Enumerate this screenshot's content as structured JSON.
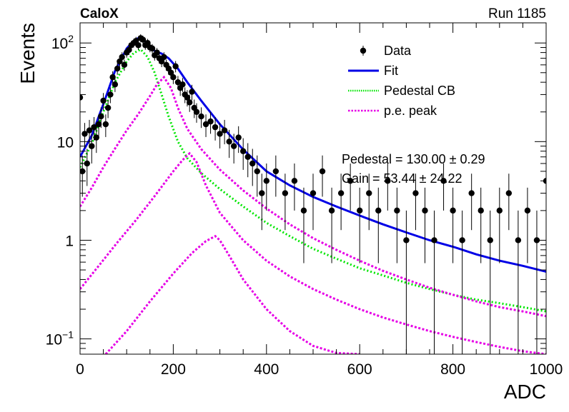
{
  "header": {
    "left_label": "CaloX",
    "right_label": "Run 1185"
  },
  "stats": {
    "pedestal": "Pedestal = 130.00 ± 0.29",
    "gain": "Gain = 53.44 ± 24.22"
  },
  "colors": {
    "data": "#000000",
    "fit": "#0000e6",
    "pedestal": "#00e600",
    "pe": "#e600e6"
  },
  "chart_data": {
    "type": "scatter",
    "xlabel": "ADC",
    "ylabel": "Events",
    "xlim": [
      0,
      1000
    ],
    "ylim": [
      0.07,
      160
    ],
    "yscale": "log",
    "x_ticks": [
      "0",
      "200",
      "400",
      "600",
      "800",
      "1000"
    ],
    "y_tick_labels": [
      {
        "value": 0.1,
        "base": "10",
        "exp": "−1"
      },
      {
        "value": 1,
        "base": "1",
        "exp": ""
      },
      {
        "value": 10,
        "base": "10",
        "exp": ""
      },
      {
        "value": 100,
        "base": "10",
        "exp": "2"
      }
    ],
    "legend": {
      "position": "top-right",
      "entries": [
        {
          "label": "Data",
          "style": "marker",
          "color": "#000000"
        },
        {
          "label": "Fit",
          "style": "line",
          "color": "#0000e6"
        },
        {
          "label": "Pedestal CB",
          "style": "dotted",
          "color": "#00e600"
        },
        {
          "label": "p.e. peak",
          "style": "dotted",
          "color": "#e600e6"
        }
      ]
    },
    "series": [
      {
        "name": "Data",
        "kind": "points",
        "color": "#000000",
        "x": [
          0,
          5,
          10,
          15,
          20,
          25,
          30,
          35,
          40,
          45,
          50,
          55,
          60,
          65,
          70,
          75,
          80,
          85,
          90,
          95,
          100,
          105,
          110,
          115,
          120,
          125,
          130,
          135,
          140,
          145,
          150,
          155,
          160,
          165,
          170,
          175,
          180,
          185,
          190,
          195,
          200,
          205,
          210,
          215,
          220,
          225,
          230,
          235,
          240,
          245,
          250,
          260,
          270,
          280,
          290,
          300,
          310,
          320,
          330,
          340,
          350,
          360,
          370,
          380,
          390,
          400,
          420,
          440,
          460,
          480,
          500,
          520,
          540,
          560,
          580,
          600,
          620,
          640,
          660,
          680,
          700,
          720,
          740,
          760,
          780,
          800,
          820,
          840,
          860,
          880,
          900,
          920,
          940,
          960,
          980,
          1000
        ],
        "y": [
          28,
          5,
          12,
          6,
          13,
          9,
          14,
          11,
          15,
          18,
          26,
          15,
          22,
          30,
          45,
          38,
          55,
          65,
          72,
          60,
          80,
          85,
          95,
          100,
          105,
          95,
          112,
          108,
          95,
          100,
          90,
          88,
          75,
          80,
          70,
          65,
          72,
          60,
          55,
          50,
          45,
          58,
          40,
          35,
          38,
          30,
          28,
          25,
          32,
          22,
          20,
          18,
          15,
          16,
          14,
          12,
          13,
          10,
          9,
          11,
          8,
          7,
          6,
          5,
          3,
          4,
          5,
          3,
          4,
          2,
          3,
          5,
          2,
          3,
          4,
          2,
          3,
          2,
          4,
          2,
          1,
          3,
          2,
          1,
          4,
          2,
          1,
          3,
          2,
          1,
          2,
          3,
          1,
          2,
          1,
          4
        ]
      },
      {
        "name": "Fit",
        "kind": "line",
        "color": "#0000e6",
        "x": [
          0,
          25,
          50,
          75,
          100,
          115,
          130,
          145,
          160,
          175,
          190,
          210,
          230,
          260,
          300,
          350,
          400,
          450,
          500,
          550,
          600,
          650,
          700,
          750,
          800,
          850,
          900,
          950,
          1000
        ],
        "y": [
          7.0,
          11.5,
          24,
          52,
          88,
          105,
          116,
          98,
          83,
          78,
          70,
          55,
          40,
          26,
          15,
          8.3,
          5.0,
          3.6,
          2.75,
          2.2,
          1.78,
          1.45,
          1.2,
          1.0,
          0.86,
          0.72,
          0.62,
          0.55,
          0.48
        ]
      },
      {
        "name": "Pedestal CB",
        "kind": "dotted",
        "color": "#00e600",
        "x": [
          0,
          25,
          50,
          75,
          100,
          115,
          130,
          145,
          160,
          175,
          190,
          210,
          230,
          260,
          300,
          350,
          400,
          450,
          500,
          550,
          600,
          650,
          700,
          750,
          800,
          850,
          900,
          950,
          1000
        ],
        "y": [
          5.5,
          9.5,
          20,
          40,
          65,
          79,
          86,
          72,
          50,
          30,
          18,
          10,
          6.8,
          4.8,
          3.3,
          2.2,
          1.5,
          1.1,
          0.82,
          0.65,
          0.52,
          0.44,
          0.37,
          0.32,
          0.28,
          0.25,
          0.23,
          0.21,
          0.19
        ]
      },
      {
        "name": "p.e. peak (1 p.e.)",
        "kind": "dotted",
        "color": "#e600e6",
        "x": [
          0,
          25,
          50,
          75,
          100,
          125,
          150,
          165,
          180,
          195,
          210,
          230,
          260,
          300,
          350,
          400,
          450,
          500,
          550,
          600,
          650,
          700,
          750,
          800,
          850,
          900,
          950,
          1000
        ],
        "y": [
          2.2,
          3.4,
          5.5,
          8.5,
          13,
          19,
          29,
          38,
          45,
          35,
          22,
          13.5,
          8.4,
          5.2,
          3.2,
          2.1,
          1.45,
          1.05,
          0.8,
          0.62,
          0.49,
          0.4,
          0.33,
          0.28,
          0.24,
          0.21,
          0.19,
          0.17
        ]
      },
      {
        "name": "p.e. peak (2 p.e.)",
        "kind": "dotted",
        "color": "#e600e6",
        "x": [
          0,
          40,
          80,
          120,
          160,
          200,
          220,
          235,
          250,
          270,
          300,
          350,
          400,
          450,
          500,
          550,
          600,
          650,
          700,
          750,
          800,
          850,
          900,
          950,
          1000
        ],
        "y": [
          0.32,
          0.55,
          0.95,
          1.6,
          2.8,
          5.0,
          6.5,
          7.6,
          6.2,
          3.6,
          1.9,
          1.0,
          0.62,
          0.43,
          0.32,
          0.25,
          0.2,
          0.165,
          0.14,
          0.12,
          0.105,
          0.093,
          0.083,
          0.075,
          0.07
        ]
      },
      {
        "name": "p.e. peak (3 p.e.)",
        "kind": "dotted",
        "color": "#e600e6",
        "x": [
          55,
          100,
          150,
          200,
          240,
          270,
          290,
          300,
          320,
          350,
          400,
          450,
          500,
          550,
          600
        ],
        "y": [
          0.07,
          0.12,
          0.24,
          0.46,
          0.74,
          0.98,
          1.1,
          1.0,
          0.7,
          0.4,
          0.2,
          0.12,
          0.085,
          0.072,
          0.07
        ]
      }
    ]
  }
}
